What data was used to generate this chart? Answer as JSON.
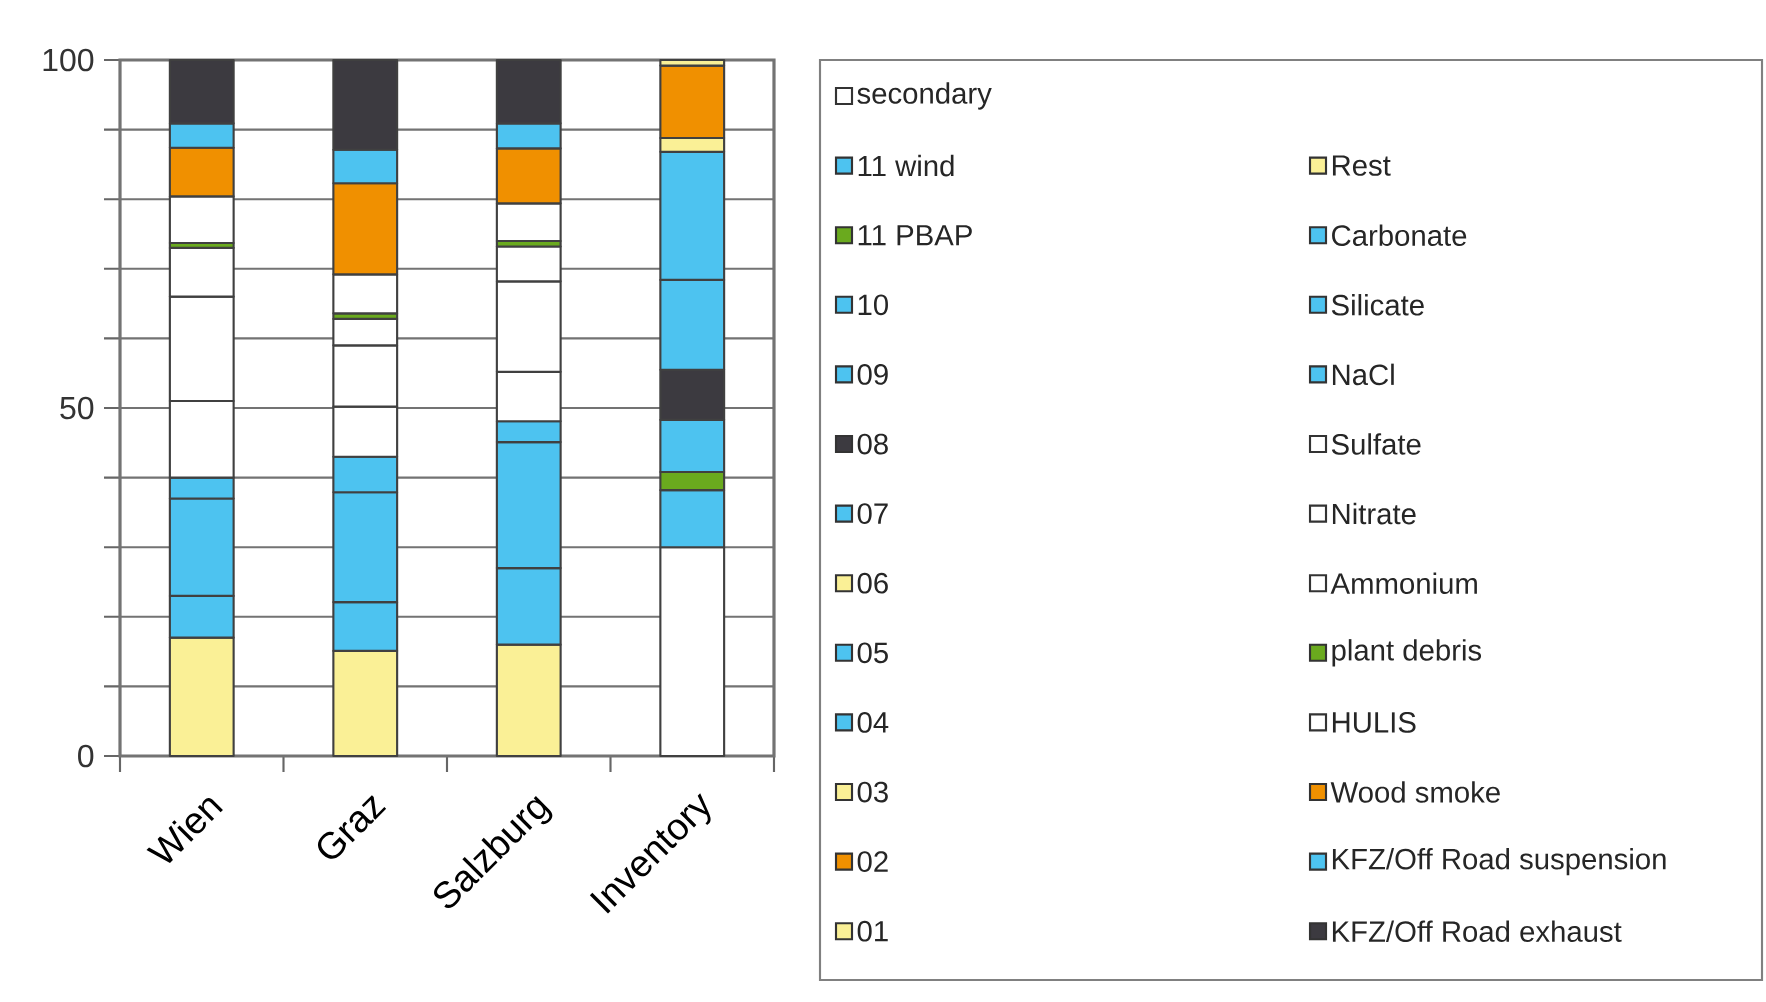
{
  "chart_data": {
    "type": "bar",
    "stacked": true,
    "categories": [
      "Wien",
      "Graz",
      "Salzburg",
      "Inventory"
    ],
    "ylim": [
      0,
      100
    ],
    "yticks": [
      0,
      {
        "value": 10,
        "label": null
      },
      {
        "value": 20,
        "label": null
      },
      {
        "value": 30,
        "label": null
      },
      {
        "value": 40,
        "label": null
      },
      50,
      {
        "value": 60,
        "label": null
      },
      {
        "value": 70,
        "label": null
      },
      {
        "value": 80,
        "label": null
      },
      {
        "value": 90,
        "label": null
      },
      100
    ],
    "grid": "y",
    "legend": "right",
    "series": [
      {
        "name": "Rest",
        "color": "#faf096",
        "values": [
          17,
          15.1,
          16,
          null
        ]
      },
      {
        "name": "Carbonate",
        "color": "#4dc3f0",
        "values": [
          6,
          7,
          11,
          null
        ]
      },
      {
        "name": "Silicate",
        "color": "#4dc3f0",
        "values": [
          14,
          15.8,
          18.1,
          null
        ]
      },
      {
        "name": "NaCl",
        "color": "#4dc3f0",
        "values": [
          3,
          5.1,
          3,
          null
        ]
      },
      {
        "name": "Sulfate",
        "color": "#ffffff",
        "values": [
          11,
          7.2,
          7.1,
          null
        ]
      },
      {
        "name": "Nitrate",
        "color": "#ffffff",
        "values": [
          15,
          8.8,
          13,
          null
        ]
      },
      {
        "name": "Ammonium",
        "color": "#ffffff",
        "values": [
          7,
          3.8,
          5,
          null
        ]
      },
      {
        "name": "plant debris",
        "color": "#6aaa1e",
        "values": [
          0.7,
          0.8,
          0.8,
          null
        ]
      },
      {
        "name": "HULIS",
        "color": "#ffffff",
        "values": [
          6.7,
          5.6,
          5.4,
          null
        ]
      },
      {
        "name": "Wood smoke",
        "color": "#f09000",
        "values": [
          7,
          13.1,
          7.9,
          null
        ]
      },
      {
        "name": "KFZ/Off Road suspension",
        "color": "#4dc3f0",
        "values": [
          3.5,
          4.8,
          3.6,
          null
        ]
      },
      {
        "name": "KFZ/Off Road exhaust",
        "color": "#3c3a40",
        "values": [
          9.1,
          12.9,
          9.1,
          null
        ]
      },
      {
        "name": "secondary",
        "color": "#ffffff",
        "values": [
          null,
          null,
          null,
          30
        ]
      },
      {
        "name": "11 wind",
        "color": "#4dc3f0",
        "values": [
          null,
          null,
          null,
          8.2
        ]
      },
      {
        "name": "11 PBAP",
        "color": "#6aaa1e",
        "values": [
          null,
          null,
          null,
          2.6
        ]
      },
      {
        "name": "10",
        "color": "#4dc3f0",
        "values": [
          null,
          null,
          null,
          7.5
        ]
      },
      {
        "name": "09",
        "color": "#4dc3f0",
        "values": [
          null,
          null,
          null,
          null
        ]
      },
      {
        "name": "08",
        "color": "#3c3a40",
        "values": [
          null,
          null,
          null,
          7.2
        ]
      },
      {
        "name": "07",
        "color": "#4dc3f0",
        "values": [
          null,
          null,
          null,
          12.9
        ]
      },
      {
        "name": "06",
        "color": "#faf096",
        "values": [
          null,
          null,
          null,
          null
        ]
      },
      {
        "name": "05",
        "color": "#4dc3f0",
        "values": [
          null,
          null,
          null,
          18.4
        ]
      },
      {
        "name": "04",
        "color": "#4dc3f0",
        "values": [
          null,
          null,
          null,
          null
        ]
      },
      {
        "name": "03",
        "color": "#faf096",
        "values": [
          null,
          null,
          null,
          2
        ]
      },
      {
        "name": "02",
        "color": "#f09000",
        "values": [
          null,
          null,
          null,
          10.4
        ]
      },
      {
        "name": "01",
        "color": "#faf096",
        "values": [
          null,
          null,
          null,
          0.8
        ]
      }
    ]
  }
}
